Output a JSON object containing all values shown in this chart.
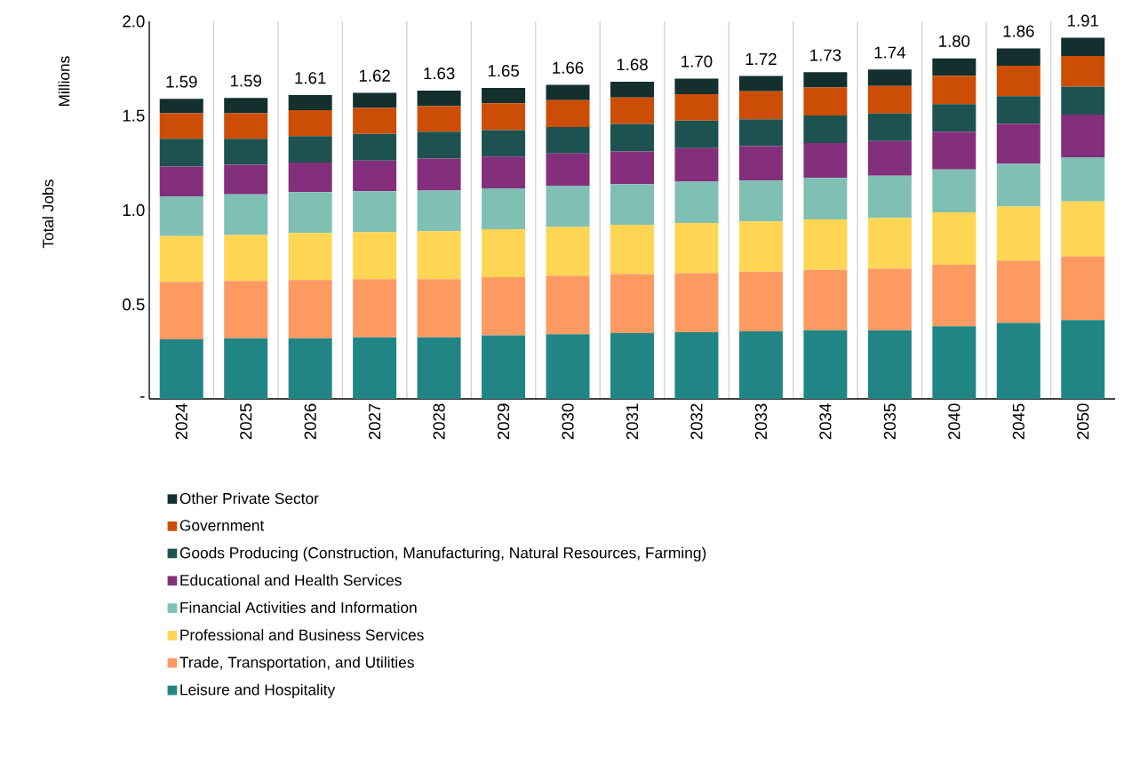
{
  "chart_data": {
    "type": "bar",
    "stacked": true,
    "ylabel": "Total Jobs",
    "annotations": [
      "Millions"
    ],
    "categories": [
      "2024",
      "2025",
      "2026",
      "2027",
      "2028",
      "2029",
      "2030",
      "2031",
      "2032",
      "2033",
      "2034",
      "2035",
      "2040",
      "2045",
      "2050"
    ],
    "series": [
      {
        "name": "Leisure and Hospitality",
        "color": "#218585",
        "values": [
          0.315,
          0.321,
          0.321,
          0.326,
          0.326,
          0.337,
          0.342,
          0.348,
          0.353,
          0.358,
          0.364,
          0.364,
          0.385,
          0.402,
          0.418
        ]
      },
      {
        "name": "Trade, Transportation, and Utilities",
        "color": "#fd9a62",
        "values": [
          0.305,
          0.304,
          0.308,
          0.308,
          0.308,
          0.308,
          0.31,
          0.313,
          0.313,
          0.316,
          0.32,
          0.326,
          0.326,
          0.331,
          0.337
        ]
      },
      {
        "name": "Professional and Business Services",
        "color": "#fed653",
        "values": [
          0.242,
          0.243,
          0.25,
          0.25,
          0.254,
          0.254,
          0.259,
          0.261,
          0.266,
          0.266,
          0.266,
          0.269,
          0.277,
          0.286,
          0.291
        ]
      },
      {
        "name": "Financial Activities and Information",
        "color": "#80bfb4",
        "values": [
          0.211,
          0.216,
          0.216,
          0.216,
          0.216,
          0.216,
          0.216,
          0.216,
          0.218,
          0.216,
          0.221,
          0.223,
          0.227,
          0.227,
          0.234
        ]
      },
      {
        "name": "Educational and Health Services",
        "color": "#842f7b",
        "values": [
          0.157,
          0.156,
          0.157,
          0.162,
          0.169,
          0.169,
          0.173,
          0.173,
          0.178,
          0.183,
          0.184,
          0.184,
          0.2,
          0.211,
          0.226
        ]
      },
      {
        "name": "Goods Producing (Construction, Manufacturing, Natural Resources, Farming)",
        "color": "#1d5250",
        "values": [
          0.148,
          0.138,
          0.14,
          0.142,
          0.142,
          0.14,
          0.14,
          0.146,
          0.146,
          0.142,
          0.146,
          0.146,
          0.146,
          0.146,
          0.148
        ]
      },
      {
        "name": "Government",
        "color": "#cc4e06",
        "values": [
          0.135,
          0.135,
          0.137,
          0.137,
          0.135,
          0.142,
          0.142,
          0.14,
          0.14,
          0.148,
          0.148,
          0.146,
          0.151,
          0.162,
          0.162
        ]
      },
      {
        "name": "Other Private Sector",
        "color": "#132f2e",
        "values": [
          0.076,
          0.081,
          0.08,
          0.08,
          0.083,
          0.081,
          0.081,
          0.083,
          0.083,
          0.081,
          0.081,
          0.087,
          0.092,
          0.092,
          0.097
        ]
      }
    ],
    "totals": [
      "1.59",
      "1.59",
      "1.61",
      "1.62",
      "1.63",
      "1.65",
      "1.66",
      "1.68",
      "1.70",
      "1.72",
      "1.73",
      "1.74",
      "1.80",
      "1.86",
      "1.91"
    ],
    "ylim": [
      0,
      2.0
    ],
    "yticks": [
      {
        "value": 0,
        "label": "-"
      },
      {
        "value": 0.5,
        "label": "0.5"
      },
      {
        "value": 1.0,
        "label": "1.0"
      },
      {
        "value": 1.5,
        "label": "1.5"
      },
      {
        "value": 2.0,
        "label": "2.0"
      }
    ],
    "grid": "x",
    "legend": "bottom"
  }
}
